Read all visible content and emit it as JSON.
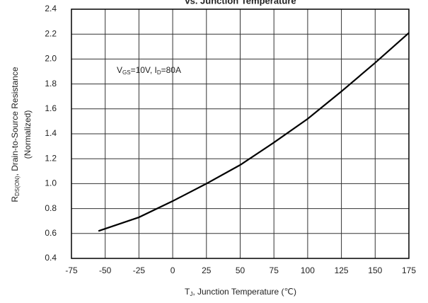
{
  "chart_data": {
    "type": "line",
    "title": "vs. Junction Temperature",
    "xlabel": [
      "T",
      "J",
      ", Junction Temperature (℃)"
    ],
    "ylabel": [
      "R",
      "DS(ON)",
      ", Drain-to-Source Resistance"
    ],
    "ylabel2": "(Normalized)",
    "annotation": [
      "V",
      "GS",
      "=10V, I",
      "D",
      "=80A"
    ],
    "x": [
      -55,
      -25,
      0,
      25,
      50,
      75,
      100,
      125,
      150,
      175
    ],
    "series": [
      {
        "color": "#000000",
        "values": [
          0.62,
          0.73,
          0.86,
          1.0,
          1.15,
          1.33,
          1.52,
          1.74,
          1.97,
          2.21
        ]
      }
    ],
    "xlim": [
      -75,
      175
    ],
    "xticks": [
      -75,
      -50,
      -25,
      0,
      25,
      50,
      75,
      100,
      125,
      150,
      175
    ],
    "ylim": [
      0.4,
      2.4
    ],
    "yticks": [
      0.4,
      0.6,
      0.8,
      {
        "value": 1,
        "label": "1.0"
      },
      1.2,
      1.4,
      1.6,
      1.8,
      {
        "value": 2,
        "label": "2.0"
      },
      2.2,
      2.4
    ],
    "grid": true
  }
}
